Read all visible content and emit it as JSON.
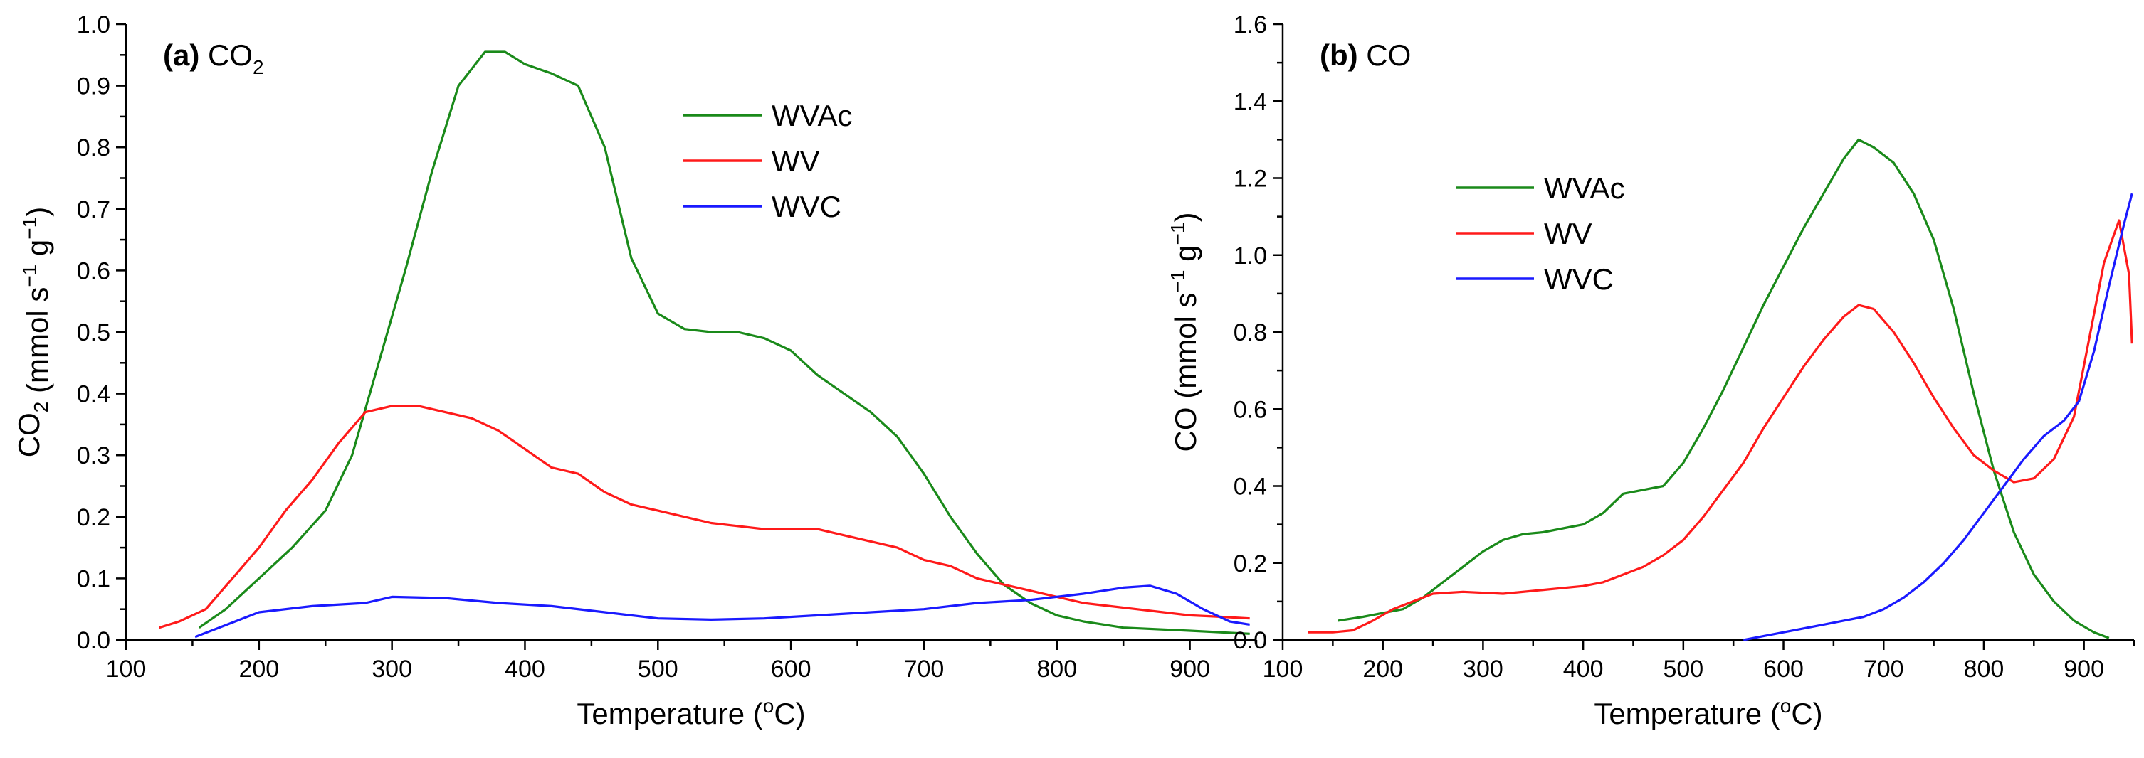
{
  "chart_data": [
    {
      "type": "line",
      "panel_label": "(a)",
      "title_main": "CO",
      "title_sub": "2",
      "xlabel_main": "Temperature (",
      "xlabel_sup": "o",
      "xlabel_end": "C)",
      "ylabel_a": "CO",
      "ylabel_sub": "2",
      "ylabel_b": " (mmol s",
      "ylabel_sup1": "−1",
      "ylabel_c": " g",
      "ylabel_sup2": "−1",
      "ylabel_d": ")",
      "xlim": [
        100,
        950
      ],
      "ylim": [
        0,
        1.0
      ],
      "xticks": [
        "100",
        "200",
        "300",
        "400",
        "500",
        "600",
        "700",
        "800",
        "900"
      ],
      "yticks": [
        "0.0",
        "0.1",
        "0.2",
        "0.3",
        "0.4",
        "0.5",
        "0.6",
        "0.7",
        "0.8",
        "0.9",
        "1.0"
      ],
      "legend_position": "top-right",
      "series": [
        {
          "name": "WVAc",
          "color": "#1a8a1a",
          "points": [
            [
              155,
              0.02
            ],
            [
              175,
              0.05
            ],
            [
              200,
              0.1
            ],
            [
              225,
              0.15
            ],
            [
              250,
              0.21
            ],
            [
              270,
              0.3
            ],
            [
              290,
              0.45
            ],
            [
              310,
              0.6
            ],
            [
              330,
              0.76
            ],
            [
              350,
              0.9
            ],
            [
              370,
              0.955
            ],
            [
              385,
              0.955
            ],
            [
              400,
              0.935
            ],
            [
              420,
              0.92
            ],
            [
              440,
              0.9
            ],
            [
              460,
              0.8
            ],
            [
              480,
              0.62
            ],
            [
              500,
              0.53
            ],
            [
              520,
              0.505
            ],
            [
              540,
              0.5
            ],
            [
              560,
              0.5
            ],
            [
              580,
              0.49
            ],
            [
              600,
              0.47
            ],
            [
              620,
              0.43
            ],
            [
              640,
              0.4
            ],
            [
              660,
              0.37
            ],
            [
              680,
              0.33
            ],
            [
              700,
              0.27
            ],
            [
              720,
              0.2
            ],
            [
              740,
              0.14
            ],
            [
              760,
              0.09
            ],
            [
              780,
              0.06
            ],
            [
              800,
              0.04
            ],
            [
              820,
              0.03
            ],
            [
              850,
              0.02
            ],
            [
              900,
              0.015
            ],
            [
              945,
              0.01
            ]
          ]
        },
        {
          "name": "WV",
          "color": "#ff1a1a",
          "points": [
            [
              125,
              0.02
            ],
            [
              140,
              0.03
            ],
            [
              160,
              0.05
            ],
            [
              180,
              0.1
            ],
            [
              200,
              0.15
            ],
            [
              220,
              0.21
            ],
            [
              240,
              0.26
            ],
            [
              260,
              0.32
            ],
            [
              280,
              0.37
            ],
            [
              300,
              0.38
            ],
            [
              320,
              0.38
            ],
            [
              340,
              0.37
            ],
            [
              360,
              0.36
            ],
            [
              380,
              0.34
            ],
            [
              400,
              0.31
            ],
            [
              420,
              0.28
            ],
            [
              440,
              0.27
            ],
            [
              460,
              0.24
            ],
            [
              480,
              0.22
            ],
            [
              500,
              0.21
            ],
            [
              520,
              0.2
            ],
            [
              540,
              0.19
            ],
            [
              560,
              0.185
            ],
            [
              580,
              0.18
            ],
            [
              600,
              0.18
            ],
            [
              620,
              0.18
            ],
            [
              640,
              0.17
            ],
            [
              660,
              0.16
            ],
            [
              680,
              0.15
            ],
            [
              700,
              0.13
            ],
            [
              720,
              0.12
            ],
            [
              740,
              0.1
            ],
            [
              760,
              0.09
            ],
            [
              780,
              0.08
            ],
            [
              800,
              0.07
            ],
            [
              820,
              0.06
            ],
            [
              840,
              0.055
            ],
            [
              860,
              0.05
            ],
            [
              880,
              0.045
            ],
            [
              900,
              0.04
            ],
            [
              920,
              0.038
            ],
            [
              945,
              0.035
            ]
          ]
        },
        {
          "name": "WVC",
          "color": "#1a1aff",
          "points": [
            [
              152,
              0.005
            ],
            [
              170,
              0.02
            ],
            [
              200,
              0.045
            ],
            [
              240,
              0.055
            ],
            [
              280,
              0.06
            ],
            [
              300,
              0.07
            ],
            [
              340,
              0.068
            ],
            [
              380,
              0.06
            ],
            [
              420,
              0.055
            ],
            [
              460,
              0.045
            ],
            [
              500,
              0.035
            ],
            [
              540,
              0.033
            ],
            [
              580,
              0.035
            ],
            [
              620,
              0.04
            ],
            [
              660,
              0.045
            ],
            [
              700,
              0.05
            ],
            [
              740,
              0.06
            ],
            [
              780,
              0.065
            ],
            [
              820,
              0.075
            ],
            [
              850,
              0.085
            ],
            [
              870,
              0.088
            ],
            [
              890,
              0.075
            ],
            [
              910,
              0.05
            ],
            [
              930,
              0.03
            ],
            [
              945,
              0.025
            ]
          ]
        }
      ]
    },
    {
      "type": "line",
      "panel_label": "(b)",
      "title_main": "CO",
      "title_sub": "",
      "xlabel_main": "Temperature (",
      "xlabel_sup": "o",
      "xlabel_end": "C)",
      "ylabel_a": "CO",
      "ylabel_sub": "",
      "ylabel_b": " (mmol s",
      "ylabel_sup1": "−1",
      "ylabel_c": " g",
      "ylabel_sup2": "−1",
      "ylabel_d": ")",
      "xlim": [
        100,
        950
      ],
      "ylim": [
        0,
        1.6
      ],
      "xticks": [
        "100",
        "200",
        "300",
        "400",
        "500",
        "600",
        "700",
        "800",
        "900"
      ],
      "yticks": [
        "0.0",
        "0.2",
        "0.4",
        "0.6",
        "0.8",
        "1.0",
        "1.2",
        "1.4",
        "1.6"
      ],
      "legend_position": "center-left",
      "series": [
        {
          "name": "WVAc",
          "color": "#1a8a1a",
          "points": [
            [
              155,
              0.05
            ],
            [
              180,
              0.06
            ],
            [
              200,
              0.07
            ],
            [
              220,
              0.08
            ],
            [
              240,
              0.11
            ],
            [
              260,
              0.15
            ],
            [
              280,
              0.19
            ],
            [
              300,
              0.23
            ],
            [
              320,
              0.26
            ],
            [
              340,
              0.275
            ],
            [
              360,
              0.28
            ],
            [
              380,
              0.29
            ],
            [
              400,
              0.3
            ],
            [
              420,
              0.33
            ],
            [
              440,
              0.38
            ],
            [
              460,
              0.39
            ],
            [
              480,
              0.4
            ],
            [
              500,
              0.46
            ],
            [
              520,
              0.55
            ],
            [
              540,
              0.65
            ],
            [
              560,
              0.76
            ],
            [
              580,
              0.87
            ],
            [
              600,
              0.97
            ],
            [
              620,
              1.07
            ],
            [
              640,
              1.16
            ],
            [
              660,
              1.25
            ],
            [
              675,
              1.3
            ],
            [
              690,
              1.28
            ],
            [
              710,
              1.24
            ],
            [
              730,
              1.16
            ],
            [
              750,
              1.04
            ],
            [
              770,
              0.86
            ],
            [
              790,
              0.64
            ],
            [
              810,
              0.44
            ],
            [
              830,
              0.28
            ],
            [
              850,
              0.17
            ],
            [
              870,
              0.1
            ],
            [
              890,
              0.05
            ],
            [
              910,
              0.02
            ],
            [
              925,
              0.005
            ]
          ]
        },
        {
          "name": "WV",
          "color": "#ff1a1a",
          "points": [
            [
              125,
              0.02
            ],
            [
              150,
              0.02
            ],
            [
              170,
              0.025
            ],
            [
              190,
              0.05
            ],
            [
              210,
              0.08
            ],
            [
              230,
              0.1
            ],
            [
              250,
              0.12
            ],
            [
              280,
              0.125
            ],
            [
              320,
              0.12
            ],
            [
              360,
              0.13
            ],
            [
              400,
              0.14
            ],
            [
              420,
              0.15
            ],
            [
              440,
              0.17
            ],
            [
              460,
              0.19
            ],
            [
              480,
              0.22
            ],
            [
              500,
              0.26
            ],
            [
              520,
              0.32
            ],
            [
              540,
              0.39
            ],
            [
              560,
              0.46
            ],
            [
              580,
              0.55
            ],
            [
              600,
              0.63
            ],
            [
              620,
              0.71
            ],
            [
              640,
              0.78
            ],
            [
              660,
              0.84
            ],
            [
              675,
              0.87
            ],
            [
              690,
              0.86
            ],
            [
              710,
              0.8
            ],
            [
              730,
              0.72
            ],
            [
              750,
              0.63
            ],
            [
              770,
              0.55
            ],
            [
              790,
              0.48
            ],
            [
              810,
              0.44
            ],
            [
              830,
              0.41
            ],
            [
              850,
              0.42
            ],
            [
              870,
              0.47
            ],
            [
              890,
              0.58
            ],
            [
              905,
              0.78
            ],
            [
              920,
              0.98
            ],
            [
              935,
              1.09
            ],
            [
              945,
              0.95
            ],
            [
              948,
              0.77
            ]
          ]
        },
        {
          "name": "WVC",
          "color": "#1a1aff",
          "points": [
            [
              560,
              0.0
            ],
            [
              580,
              0.01
            ],
            [
              600,
              0.02
            ],
            [
              620,
              0.03
            ],
            [
              640,
              0.04
            ],
            [
              660,
              0.05
            ],
            [
              680,
              0.06
            ],
            [
              700,
              0.08
            ],
            [
              720,
              0.11
            ],
            [
              740,
              0.15
            ],
            [
              760,
              0.2
            ],
            [
              780,
              0.26
            ],
            [
              800,
              0.33
            ],
            [
              820,
              0.4
            ],
            [
              840,
              0.47
            ],
            [
              860,
              0.53
            ],
            [
              880,
              0.57
            ],
            [
              895,
              0.62
            ],
            [
              910,
              0.75
            ],
            [
              925,
              0.92
            ],
            [
              940,
              1.08
            ],
            [
              948,
              1.16
            ]
          ]
        }
      ]
    }
  ]
}
